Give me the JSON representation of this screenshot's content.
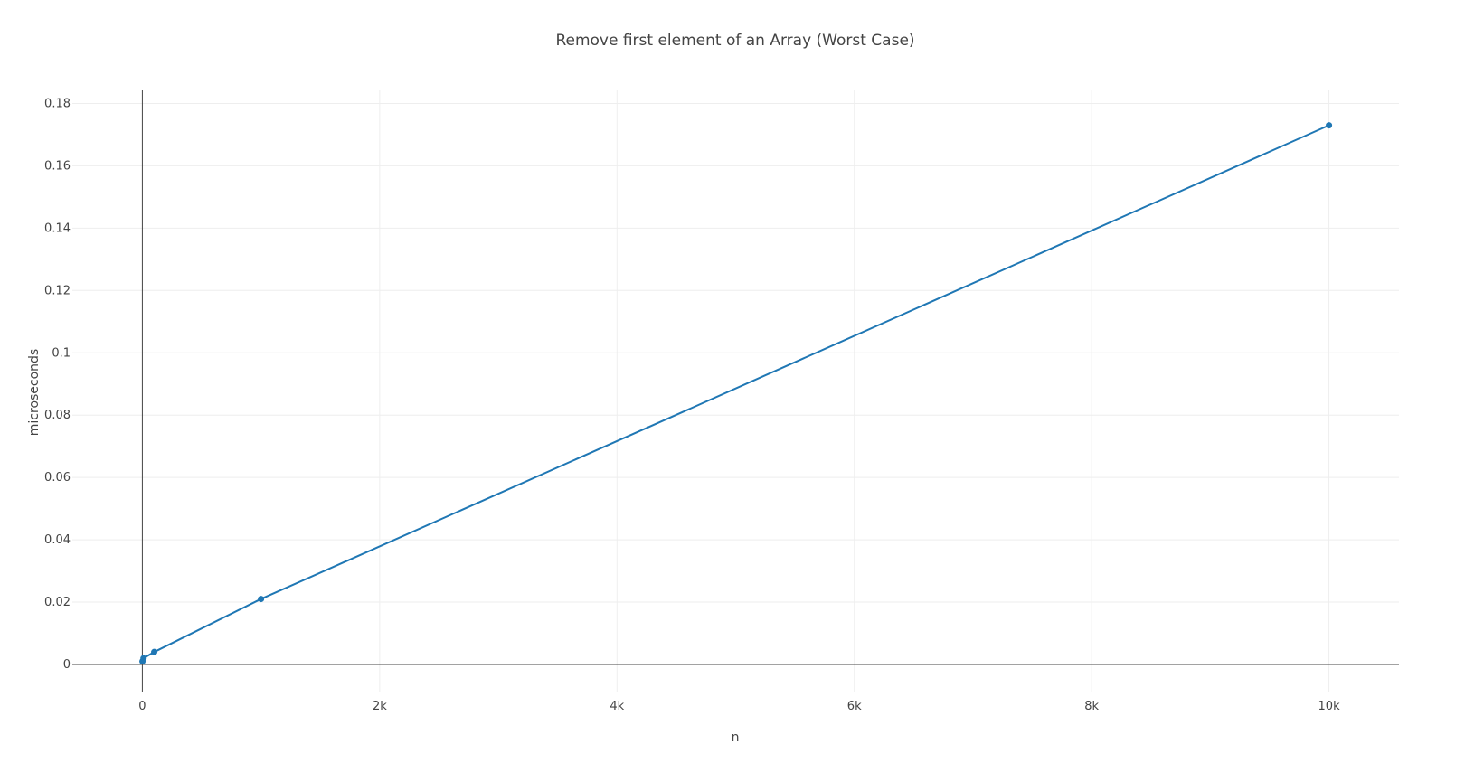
{
  "chart_data": {
    "type": "line",
    "title": "Remove first element of an Array (Worst Case)",
    "xlabel": "n",
    "ylabel": "microseconds",
    "xlim": [
      -590,
      10590
    ],
    "ylim": [
      -0.009,
      0.1842
    ],
    "x_ticks": [
      {
        "value": 0,
        "label": "0"
      },
      {
        "value": 2000,
        "label": "2k"
      },
      {
        "value": 4000,
        "label": "4k"
      },
      {
        "value": 6000,
        "label": "6k"
      },
      {
        "value": 8000,
        "label": "8k"
      },
      {
        "value": 10000,
        "label": "10k"
      }
    ],
    "y_ticks": [
      {
        "value": 0,
        "label": "0"
      },
      {
        "value": 0.02,
        "label": "0.02"
      },
      {
        "value": 0.04,
        "label": "0.04"
      },
      {
        "value": 0.06,
        "label": "0.06"
      },
      {
        "value": 0.08,
        "label": "0.08"
      },
      {
        "value": 0.1,
        "label": "0.1"
      },
      {
        "value": 0.12,
        "label": "0.12"
      },
      {
        "value": 0.14,
        "label": "0.14"
      },
      {
        "value": 0.16,
        "label": "0.16"
      },
      {
        "value": 0.18,
        "label": "0.18"
      }
    ],
    "grid": true,
    "legend": "none",
    "colors": {
      "series": "#1f77b4"
    },
    "series": [
      {
        "x": [
          1,
          10,
          100,
          1000,
          10000
        ],
        "y": [
          0.001,
          0.002,
          0.004,
          0.021,
          0.173
        ]
      }
    ]
  }
}
